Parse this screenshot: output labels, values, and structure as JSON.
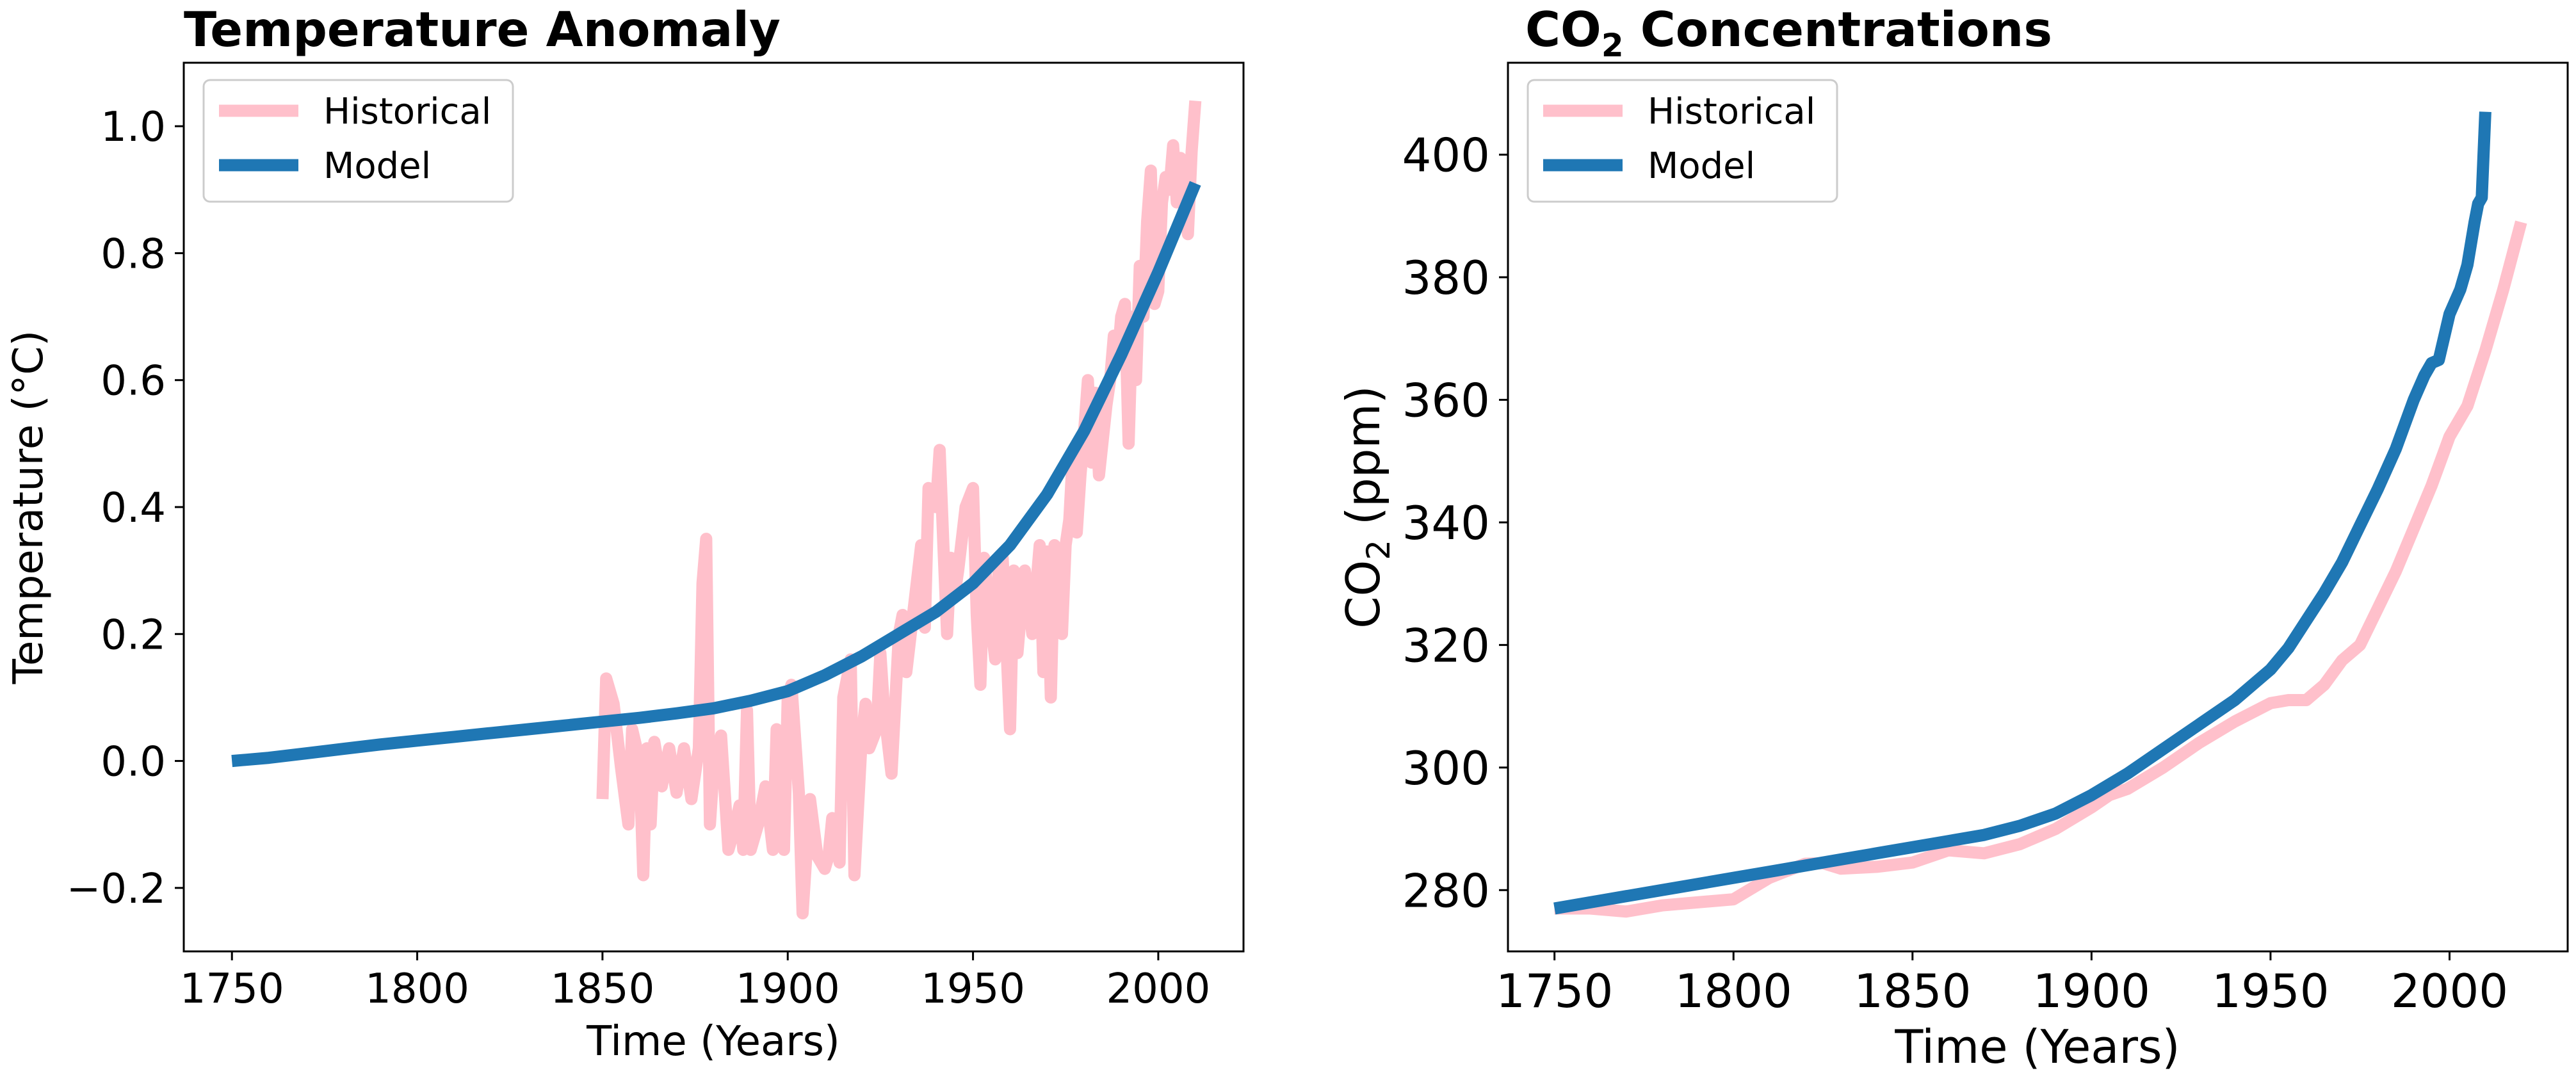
{
  "chart_data": [
    {
      "type": "line",
      "title": "Temperature Anomaly",
      "xlabel": "Time (Years)",
      "ylabel": "Temperature (°C)",
      "xlim": [
        1737,
        2023
      ],
      "ylim": [
        -0.3,
        1.1
      ],
      "xticks": [
        1750,
        1800,
        1850,
        1900,
        1950,
        2000
      ],
      "xtick_labels": [
        "1750",
        "1800",
        "1850",
        "1900",
        "1950",
        "2000"
      ],
      "yticks": [
        -0.2,
        0.0,
        0.2,
        0.4,
        0.6,
        0.8,
        1.0
      ],
      "ytick_labels": [
        "−0.2",
        "0.0",
        "0.2",
        "0.4",
        "0.6",
        "0.8",
        "1.0"
      ],
      "grid": false,
      "legend_position": "top-left",
      "series": [
        {
          "name": "Historical",
          "color": "#ffc0cb",
          "x": [
            1850,
            1851,
            1853,
            1855,
            1857,
            1858,
            1860,
            1861,
            1862,
            1863,
            1864,
            1866,
            1868,
            1870,
            1872,
            1874,
            1876,
            1877,
            1878,
            1879,
            1880,
            1882,
            1884,
            1885,
            1887,
            1888,
            1889,
            1890,
            1892,
            1894,
            1896,
            1897,
            1898,
            1899,
            1900,
            1901,
            1903,
            1904,
            1906,
            1908,
            1910,
            1911,
            1912,
            1914,
            1915,
            1917,
            1918,
            1920,
            1921,
            1922,
            1924,
            1925,
            1926,
            1928,
            1930,
            1931,
            1932,
            1934,
            1936,
            1937,
            1938,
            1940,
            1941,
            1942,
            1943,
            1944,
            1945,
            1946,
            1948,
            1950,
            1951,
            1952,
            1953,
            1954,
            1956,
            1957,
            1958,
            1960,
            1961,
            1962,
            1963,
            1964,
            1966,
            1968,
            1969,
            1970,
            1971,
            1972,
            1974,
            1975,
            1976,
            1977,
            1978,
            1979,
            1980,
            1981,
            1982,
            1983,
            1984,
            1986,
            1987,
            1988,
            1989,
            1990,
            1991,
            1992,
            1993,
            1994,
            1995,
            1996,
            1997,
            1998,
            1999,
            2000,
            2001,
            2002,
            2003,
            2004,
            2005,
            2006,
            2007,
            2008,
            2009,
            2010
          ],
          "values": [
            -0.06,
            0.13,
            0.09,
            -0.01,
            -0.1,
            0.05,
            0.0,
            -0.18,
            0.02,
            -0.1,
            0.03,
            -0.04,
            0.02,
            -0.05,
            0.02,
            -0.06,
            0.02,
            0.28,
            0.35,
            -0.1,
            -0.01,
            0.04,
            -0.14,
            -0.12,
            -0.07,
            -0.14,
            0.08,
            -0.14,
            -0.1,
            -0.04,
            -0.14,
            0.05,
            -0.09,
            -0.14,
            0.1,
            0.12,
            -0.05,
            -0.24,
            -0.06,
            -0.15,
            -0.17,
            -0.15,
            -0.09,
            -0.16,
            0.1,
            0.16,
            -0.18,
            0.04,
            0.09,
            0.02,
            0.05,
            0.17,
            0.08,
            -0.02,
            0.2,
            0.23,
            0.14,
            0.24,
            0.34,
            0.21,
            0.43,
            0.4,
            0.49,
            0.34,
            0.2,
            0.32,
            0.26,
            0.3,
            0.4,
            0.43,
            0.23,
            0.12,
            0.32,
            0.26,
            0.16,
            0.32,
            0.32,
            0.05,
            0.3,
            0.17,
            0.24,
            0.3,
            0.2,
            0.34,
            0.14,
            0.33,
            0.1,
            0.34,
            0.2,
            0.34,
            0.38,
            0.49,
            0.36,
            0.45,
            0.52,
            0.6,
            0.47,
            0.58,
            0.45,
            0.56,
            0.6,
            0.67,
            0.63,
            0.7,
            0.72,
            0.5,
            0.7,
            0.6,
            0.78,
            0.7,
            0.85,
            0.93,
            0.72,
            0.74,
            0.88,
            0.92,
            0.9,
            0.97,
            0.88,
            0.95,
            0.91,
            0.83,
            0.96,
            1.04
          ]
        },
        {
          "name": "Model",
          "color": "#1f77b4",
          "x": [
            1750,
            1760,
            1770,
            1780,
            1790,
            1800,
            1810,
            1820,
            1830,
            1840,
            1850,
            1860,
            1870,
            1880,
            1890,
            1900,
            1910,
            1920,
            1930,
            1940,
            1950,
            1960,
            1970,
            1980,
            1990,
            2000,
            2010
          ],
          "values": [
            0.0,
            0.005,
            0.012,
            0.019,
            0.026,
            0.032,
            0.038,
            0.044,
            0.05,
            0.056,
            0.062,
            0.068,
            0.075,
            0.083,
            0.095,
            0.11,
            0.135,
            0.165,
            0.2,
            0.235,
            0.28,
            0.34,
            0.42,
            0.52,
            0.64,
            0.77,
            0.91
          ]
        }
      ]
    },
    {
      "type": "line",
      "title": "CO₂ Concentrations",
      "title_parts": [
        "CO",
        "2",
        " Concentrations"
      ],
      "xlabel": "Time (Years)",
      "ylabel": "CO₂ (ppm)",
      "ylabel_parts": [
        "CO",
        "2",
        " (ppm)"
      ],
      "xlim": [
        1737,
        2033
      ],
      "ylim": [
        270,
        415
      ],
      "xticks": [
        1750,
        1800,
        1850,
        1900,
        1950,
        2000
      ],
      "xtick_labels": [
        "1750",
        "1800",
        "1850",
        "1900",
        "1950",
        "2000"
      ],
      "yticks": [
        280,
        300,
        320,
        340,
        360,
        380,
        400
      ],
      "ytick_labels": [
        "280",
        "300",
        "320",
        "340",
        "360",
        "380",
        "400"
      ],
      "grid": false,
      "legend_position": "top-left",
      "series": [
        {
          "name": "Historical",
          "color": "#ffc0cb",
          "x": [
            1750,
            1760,
            1770,
            1780,
            1790,
            1800,
            1810,
            1820,
            1825,
            1830,
            1840,
            1850,
            1860,
            1870,
            1880,
            1890,
            1900,
            1905,
            1910,
            1920,
            1930,
            1940,
            1950,
            1955,
            1960,
            1965,
            1970,
            1975,
            1980,
            1985,
            1990,
            1995,
            2000,
            2005,
            2010,
            2015,
            2020
          ],
          "values": [
            277,
            277,
            276.5,
            277.5,
            278,
            278.5,
            282,
            284.3,
            284.4,
            283.5,
            283.8,
            284.5,
            286.5,
            286,
            287.5,
            290,
            293.5,
            295.5,
            296.5,
            300,
            304,
            307.5,
            310.5,
            311,
            311,
            313.5,
            317.5,
            320,
            326,
            332,
            339,
            346,
            354,
            359,
            368,
            378,
            389
          ]
        },
        {
          "name": "Model",
          "color": "#1f77b4",
          "x": [
            1750,
            1760,
            1770,
            1780,
            1790,
            1800,
            1810,
            1820,
            1830,
            1840,
            1850,
            1860,
            1870,
            1880,
            1890,
            1900,
            1910,
            1920,
            1930,
            1940,
            1950,
            1955,
            1960,
            1965,
            1970,
            1975,
            1980,
            1985,
            1990,
            1993,
            1995,
            1997,
            2000,
            2003,
            2005,
            2007,
            2008,
            2009,
            2010
          ],
          "values": [
            277,
            278,
            279,
            280,
            281,
            282,
            283,
            284,
            285,
            286,
            287,
            288,
            289,
            290.5,
            292.5,
            295.5,
            299,
            303,
            307,
            311,
            316,
            319.5,
            324,
            328.5,
            333.5,
            339.5,
            345.5,
            352,
            360,
            364,
            366,
            366.5,
            374,
            378,
            382,
            389,
            392,
            393,
            407
          ]
        }
      ]
    }
  ]
}
